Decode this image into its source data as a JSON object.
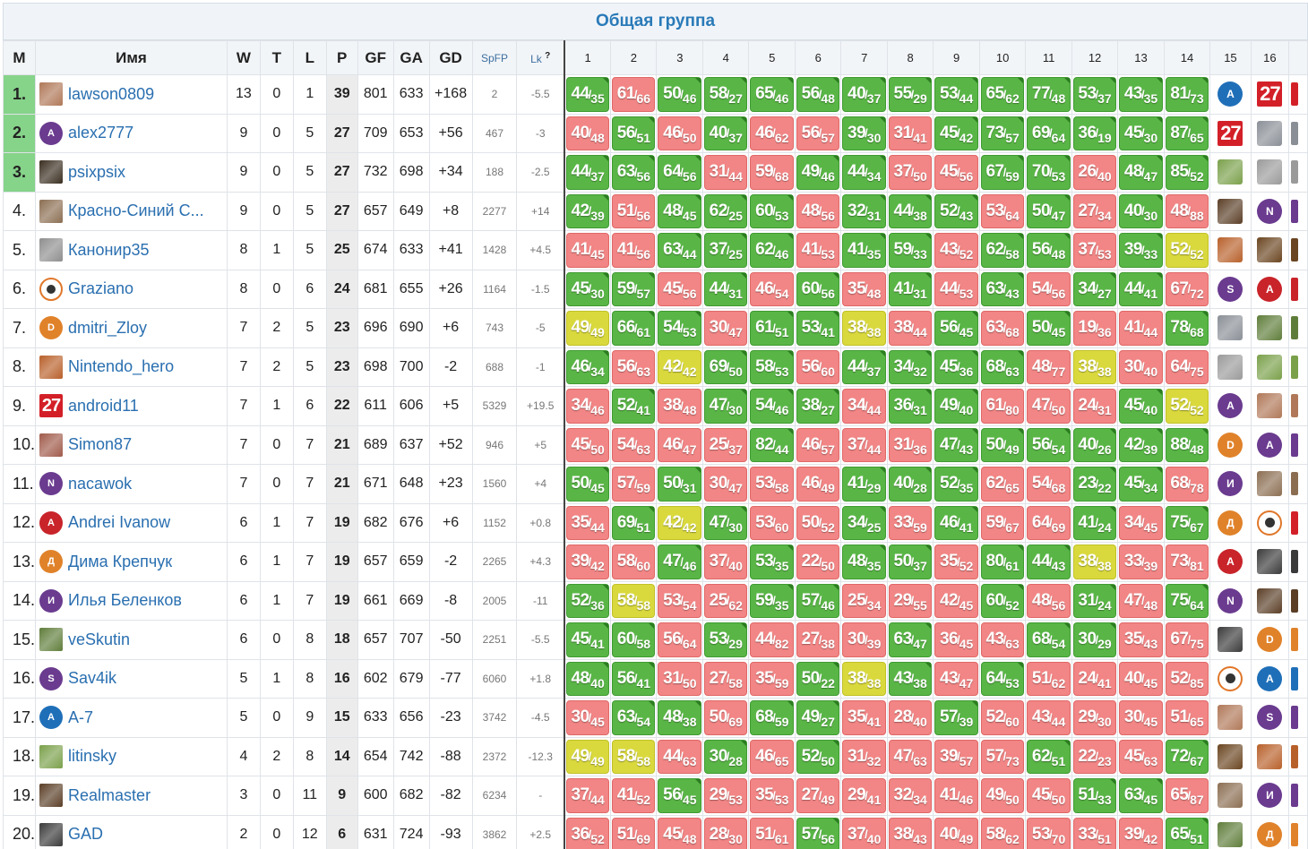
{
  "group_title": "Общая группа",
  "columns": {
    "m": "М",
    "name": "Имя",
    "w": "W",
    "t": "T",
    "l": "L",
    "p": "P",
    "gf": "GF",
    "ga": "GA",
    "gd": "GD",
    "spfp": "SpFP",
    "lk": "Lk",
    "lk_mark": "?"
  },
  "rounds": [
    "1",
    "2",
    "3",
    "4",
    "5",
    "6",
    "7",
    "8",
    "9",
    "10",
    "11",
    "12",
    "13",
    "14",
    "15",
    "16"
  ],
  "colors": {
    "win": "#59b646",
    "loss": "#f28585",
    "draw": "#d9d93e",
    "top_rank": "#86d38a",
    "link": "#2a6fb0"
  },
  "rows": [
    {
      "rank": "1.",
      "name": "lawson0809",
      "avatar": {
        "type": "photo",
        "color": "#b07858"
      },
      "w": "13",
      "t": "0",
      "l": "1",
      "p": "39",
      "gf": "801",
      "ga": "633",
      "gd": "+168",
      "spfp": "2",
      "lk": "-5.5",
      "results": [
        "44/35",
        "61/66",
        "50/46",
        "58/27",
        "65/46",
        "56/48",
        "40/37",
        "55/29",
        "53/44",
        "65/62",
        "77/48",
        "53/37",
        "43/35",
        "81/73"
      ],
      "extra": [
        {
          "type": "letter",
          "letter": "A",
          "color": "#1f6fb8"
        },
        {
          "type": "n27"
        }
      ]
    },
    {
      "rank": "2.",
      "name": "alex2777",
      "avatar": {
        "type": "letter",
        "letter": "A",
        "color": "#6a3b8f"
      },
      "w": "9",
      "t": "0",
      "l": "5",
      "p": "27",
      "gf": "709",
      "ga": "653",
      "gd": "+56",
      "spfp": "467",
      "lk": "-3",
      "results": [
        "40/48",
        "56/51",
        "46/50",
        "40/37",
        "46/62",
        "56/57",
        "39/30",
        "31/41",
        "45/42",
        "73/57",
        "69/64",
        "36/19",
        "45/30",
        "87/65"
      ],
      "extra": [
        {
          "type": "n27"
        },
        {
          "type": "photo",
          "color": "#8a8f96"
        }
      ]
    },
    {
      "rank": "3.",
      "name": "psixpsix",
      "avatar": {
        "type": "photo",
        "color": "#3a2e20"
      },
      "w": "9",
      "t": "0",
      "l": "5",
      "p": "27",
      "gf": "732",
      "ga": "698",
      "gd": "+34",
      "spfp": "188",
      "lk": "-2.5",
      "results": [
        "44/37",
        "63/56",
        "64/56",
        "31/44",
        "59/68",
        "49/46",
        "44/34",
        "37/50",
        "45/56",
        "67/59",
        "70/53",
        "26/40",
        "48/47",
        "85/52"
      ],
      "extra": [
        {
          "type": "photo",
          "color": "#7aa04a"
        },
        {
          "type": "photo",
          "color": "#9a9a9a"
        }
      ]
    },
    {
      "rank": "4.",
      "name": "Красно-Синий С...",
      "avatar": {
        "type": "photo",
        "color": "#8b6e52"
      },
      "w": "9",
      "t": "0",
      "l": "5",
      "p": "27",
      "gf": "657",
      "ga": "649",
      "gd": "+8",
      "spfp": "2277",
      "lk": "+14",
      "results": [
        "42/39",
        "51/56",
        "48/45",
        "62/25",
        "60/53",
        "48/56",
        "32/31",
        "44/38",
        "52/43",
        "53/64",
        "50/47",
        "27/34",
        "40/30",
        "48/88"
      ],
      "extra": [
        {
          "type": "photo",
          "color": "#5a3e26"
        },
        {
          "type": "letter",
          "letter": "N",
          "color": "#6a3b8f"
        }
      ]
    },
    {
      "rank": "5.",
      "name": "Канонир35",
      "avatar": {
        "type": "photo",
        "color": "#8e8e8e"
      },
      "w": "8",
      "t": "1",
      "l": "5",
      "p": "25",
      "gf": "674",
      "ga": "633",
      "gd": "+41",
      "spfp": "1428",
      "lk": "+4.5",
      "results": [
        "41/45",
        "41/56",
        "63/44",
        "37/25",
        "62/46",
        "41/53",
        "41/35",
        "59/33",
        "43/52",
        "62/58",
        "56/48",
        "37/53",
        "39/33",
        "52/52"
      ],
      "extra": [
        {
          "type": "photo",
          "color": "#b8602a"
        },
        {
          "type": "photo",
          "color": "#6a4520"
        }
      ]
    },
    {
      "rank": "6.",
      "name": "Graziano",
      "avatar": {
        "type": "ring"
      },
      "w": "8",
      "t": "0",
      "l": "6",
      "p": "24",
      "gf": "681",
      "ga": "655",
      "gd": "+26",
      "spfp": "1164",
      "lk": "-1.5",
      "results": [
        "45/30",
        "59/57",
        "45/56",
        "44/31",
        "46/54",
        "60/56",
        "35/48",
        "41/31",
        "44/53",
        "63/43",
        "54/56",
        "34/27",
        "44/41",
        "67/72"
      ],
      "extra": [
        {
          "type": "letter",
          "letter": "S",
          "color": "#6a3b8f"
        },
        {
          "type": "letter",
          "letter": "A",
          "color": "#c8242a"
        }
      ]
    },
    {
      "rank": "7.",
      "name": "dmitri_Zloy",
      "avatar": {
        "type": "letter",
        "letter": "D",
        "color": "#e0822a"
      },
      "w": "7",
      "t": "2",
      "l": "5",
      "p": "23",
      "gf": "696",
      "ga": "690",
      "gd": "+6",
      "spfp": "743",
      "lk": "-5",
      "results": [
        "49/49",
        "66/61",
        "54/53",
        "30/47",
        "61/51",
        "53/41",
        "38/38",
        "38/44",
        "56/45",
        "63/68",
        "50/45",
        "19/36",
        "41/44",
        "78/68"
      ],
      "extra": [
        {
          "type": "photo",
          "color": "#8a8f96"
        },
        {
          "type": "photo",
          "color": "#5f7d3a"
        }
      ]
    },
    {
      "rank": "8.",
      "name": "Nintendo_hero",
      "avatar": {
        "type": "photo",
        "color": "#b8602a"
      },
      "w": "7",
      "t": "2",
      "l": "5",
      "p": "23",
      "gf": "698",
      "ga": "700",
      "gd": "-2",
      "spfp": "688",
      "lk": "-1",
      "results": [
        "46/34",
        "56/63",
        "42/42",
        "69/50",
        "58/53",
        "56/60",
        "44/37",
        "34/32",
        "45/36",
        "68/63",
        "48/77",
        "38/38",
        "30/40",
        "64/75"
      ],
      "extra": [
        {
          "type": "photo",
          "color": "#9a9a9a"
        },
        {
          "type": "photo",
          "color": "#7aa04a"
        }
      ]
    },
    {
      "rank": "9.",
      "name": "android11",
      "avatar": {
        "type": "n27"
      },
      "w": "7",
      "t": "1",
      "l": "6",
      "p": "22",
      "gf": "611",
      "ga": "606",
      "gd": "+5",
      "spfp": "5329",
      "lk": "+19.5",
      "results": [
        "34/46",
        "52/41",
        "38/48",
        "47/30",
        "54/46",
        "38/27",
        "34/44",
        "36/31",
        "49/40",
        "61/80",
        "47/50",
        "24/31",
        "45/40",
        "52/52"
      ],
      "extra": [
        {
          "type": "letter",
          "letter": "A",
          "color": "#6a3b8f"
        },
        {
          "type": "photo",
          "color": "#b07858"
        }
      ]
    },
    {
      "rank": "10.",
      "name": "Simon87",
      "avatar": {
        "type": "photo",
        "color": "#a05a4a"
      },
      "w": "7",
      "t": "0",
      "l": "7",
      "p": "21",
      "gf": "689",
      "ga": "637",
      "gd": "+52",
      "spfp": "946",
      "lk": "+5",
      "results": [
        "45/50",
        "54/63",
        "46/47",
        "25/37",
        "82/44",
        "46/57",
        "37/44",
        "31/36",
        "47/43",
        "50/49",
        "56/54",
        "40/26",
        "42/39",
        "88/48"
      ],
      "extra": [
        {
          "type": "letter",
          "letter": "D",
          "color": "#e0822a"
        },
        {
          "type": "letter",
          "letter": "A",
          "color": "#6a3b8f"
        }
      ]
    },
    {
      "rank": "11.",
      "name": "nacawok",
      "avatar": {
        "type": "letter",
        "letter": "N",
        "color": "#6a3b8f"
      },
      "w": "7",
      "t": "0",
      "l": "7",
      "p": "21",
      "gf": "671",
      "ga": "648",
      "gd": "+23",
      "spfp": "1560",
      "lk": "+4",
      "results": [
        "50/45",
        "57/59",
        "50/31",
        "30/47",
        "53/58",
        "46/49",
        "41/29",
        "40/28",
        "52/35",
        "62/65",
        "54/68",
        "23/22",
        "45/34",
        "68/78"
      ],
      "extra": [
        {
          "type": "letter",
          "letter": "И",
          "color": "#6a3b8f"
        },
        {
          "type": "photo",
          "color": "#8b6e52"
        }
      ]
    },
    {
      "rank": "12.",
      "name": "Andrei Ivanow",
      "avatar": {
        "type": "letter",
        "letter": "A",
        "color": "#c8242a"
      },
      "w": "6",
      "t": "1",
      "l": "7",
      "p": "19",
      "gf": "682",
      "ga": "676",
      "gd": "+6",
      "spfp": "1152",
      "lk": "+0.8",
      "results": [
        "35/44",
        "69/51",
        "42/42",
        "47/30",
        "53/60",
        "50/52",
        "34/25",
        "33/59",
        "46/41",
        "59/67",
        "64/69",
        "41/24",
        "34/45",
        "75/67"
      ],
      "extra": [
        {
          "type": "letter",
          "letter": "Д",
          "color": "#e0822a"
        },
        {
          "type": "ring"
        }
      ]
    },
    {
      "rank": "13.",
      "name": "Дима Крепчук",
      "avatar": {
        "type": "letter",
        "letter": "Д",
        "color": "#e0822a"
      },
      "w": "6",
      "t": "1",
      "l": "7",
      "p": "19",
      "gf": "657",
      "ga": "659",
      "gd": "-2",
      "spfp": "2265",
      "lk": "+4.3",
      "results": [
        "39/42",
        "58/60",
        "47/46",
        "37/40",
        "53/35",
        "22/50",
        "48/35",
        "50/37",
        "35/52",
        "80/61",
        "44/43",
        "38/38",
        "33/39",
        "73/81"
      ],
      "extra": [
        {
          "type": "letter",
          "letter": "A",
          "color": "#c8242a"
        },
        {
          "type": "photo",
          "color": "#3a3a3a"
        }
      ]
    },
    {
      "rank": "14.",
      "name": "Илья Беленков",
      "avatar": {
        "type": "letter",
        "letter": "И",
        "color": "#6a3b8f"
      },
      "w": "6",
      "t": "1",
      "l": "7",
      "p": "19",
      "gf": "661",
      "ga": "669",
      "gd": "-8",
      "spfp": "2005",
      "lk": "-11",
      "results": [
        "52/36",
        "58/58",
        "53/54",
        "25/62",
        "59/35",
        "57/46",
        "25/34",
        "29/55",
        "42/45",
        "60/52",
        "48/56",
        "31/24",
        "47/48",
        "75/64"
      ],
      "extra": [
        {
          "type": "letter",
          "letter": "N",
          "color": "#6a3b8f"
        },
        {
          "type": "photo",
          "color": "#5a3e26"
        }
      ]
    },
    {
      "rank": "15.",
      "name": "veSkutin",
      "avatar": {
        "type": "photo",
        "color": "#5f7d3a"
      },
      "w": "6",
      "t": "0",
      "l": "8",
      "p": "18",
      "gf": "657",
      "ga": "707",
      "gd": "-50",
      "spfp": "2251",
      "lk": "-5.5",
      "results": [
        "45/41",
        "60/58",
        "56/64",
        "53/29",
        "44/82",
        "27/38",
        "30/39",
        "63/47",
        "36/45",
        "43/63",
        "68/54",
        "30/29",
        "35/43",
        "67/75"
      ],
      "extra": [
        {
          "type": "photo",
          "color": "#3a3a3a"
        },
        {
          "type": "letter",
          "letter": "D",
          "color": "#e0822a"
        }
      ]
    },
    {
      "rank": "16.",
      "name": "Sav4ik",
      "avatar": {
        "type": "letter",
        "letter": "S",
        "color": "#6a3b8f"
      },
      "w": "5",
      "t": "1",
      "l": "8",
      "p": "16",
      "gf": "602",
      "ga": "679",
      "gd": "-77",
      "spfp": "6060",
      "lk": "+1.8",
      "results": [
        "48/40",
        "56/41",
        "31/50",
        "27/58",
        "35/59",
        "50/22",
        "38/38",
        "43/38",
        "43/47",
        "64/53",
        "51/62",
        "24/41",
        "40/45",
        "52/85"
      ],
      "extra": [
        {
          "type": "ring"
        },
        {
          "type": "letter",
          "letter": "A",
          "color": "#1f6fb8"
        }
      ]
    },
    {
      "rank": "17.",
      "name": "A-7",
      "avatar": {
        "type": "letter",
        "letter": "A",
        "color": "#1f6fb8"
      },
      "w": "5",
      "t": "0",
      "l": "9",
      "p": "15",
      "gf": "633",
      "ga": "656",
      "gd": "-23",
      "spfp": "3742",
      "lk": "-4.5",
      "results": [
        "30/45",
        "63/54",
        "48/38",
        "50/69",
        "68/59",
        "49/27",
        "35/41",
        "28/40",
        "57/39",
        "52/60",
        "43/44",
        "29/30",
        "30/45",
        "51/65"
      ],
      "extra": [
        {
          "type": "photo",
          "color": "#b07858"
        },
        {
          "type": "letter",
          "letter": "S",
          "color": "#6a3b8f"
        }
      ]
    },
    {
      "rank": "18.",
      "name": "litinsky",
      "avatar": {
        "type": "photo",
        "color": "#7aa04a"
      },
      "w": "4",
      "t": "2",
      "l": "8",
      "p": "14",
      "gf": "654",
      "ga": "742",
      "gd": "-88",
      "spfp": "2372",
      "lk": "-12.3",
      "results": [
        "49/49",
        "58/58",
        "44/63",
        "30/28",
        "46/65",
        "52/50",
        "31/32",
        "47/63",
        "39/57",
        "57/73",
        "62/51",
        "22/23",
        "45/63",
        "72/67"
      ],
      "extra": [
        {
          "type": "photo",
          "color": "#6a4520"
        },
        {
          "type": "photo",
          "color": "#b8602a"
        }
      ]
    },
    {
      "rank": "19.",
      "name": "Realmaster",
      "avatar": {
        "type": "photo",
        "color": "#5a3e26"
      },
      "w": "3",
      "t": "0",
      "l": "11",
      "p": "9",
      "gf": "600",
      "ga": "682",
      "gd": "-82",
      "spfp": "6234",
      "lk": "-",
      "results": [
        "37/44",
        "41/52",
        "56/45",
        "29/53",
        "35/53",
        "27/49",
        "29/41",
        "32/34",
        "41/46",
        "49/50",
        "45/50",
        "51/33",
        "63/45",
        "65/87"
      ],
      "extra": [
        {
          "type": "photo",
          "color": "#8b6e52"
        },
        {
          "type": "letter",
          "letter": "И",
          "color": "#6a3b8f"
        }
      ]
    },
    {
      "rank": "20.",
      "name": "GAD",
      "avatar": {
        "type": "photo",
        "color": "#3a3a3a"
      },
      "w": "2",
      "t": "0",
      "l": "12",
      "p": "6",
      "gf": "631",
      "ga": "724",
      "gd": "-93",
      "spfp": "3862",
      "lk": "+2.5",
      "results": [
        "36/52",
        "51/69",
        "45/48",
        "28/30",
        "51/61",
        "57/56",
        "37/40",
        "38/43",
        "40/49",
        "58/62",
        "53/70",
        "33/51",
        "39/42",
        "65/51"
      ],
      "extra": [
        {
          "type": "photo",
          "color": "#5f7d3a"
        },
        {
          "type": "letter",
          "letter": "Д",
          "color": "#e0822a"
        }
      ]
    }
  ]
}
